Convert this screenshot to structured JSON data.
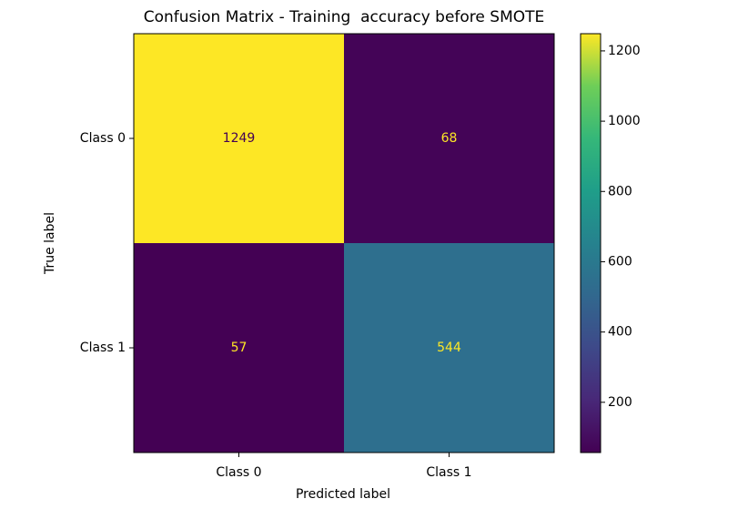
{
  "chart_data": {
    "type": "heatmap",
    "title": "Confusion Matrix - Training  accuracy before SMOTE",
    "x_label": "Predicted label",
    "y_label": "True label",
    "x_categories": [
      "Class 0",
      "Class 1"
    ],
    "y_categories": [
      "Class 0",
      "Class 1"
    ],
    "values": [
      [
        1249,
        68
      ],
      [
        57,
        544
      ]
    ],
    "colormap": "viridis",
    "colorbar_ticks": [
      200,
      400,
      600,
      800,
      1000,
      1200
    ]
  }
}
